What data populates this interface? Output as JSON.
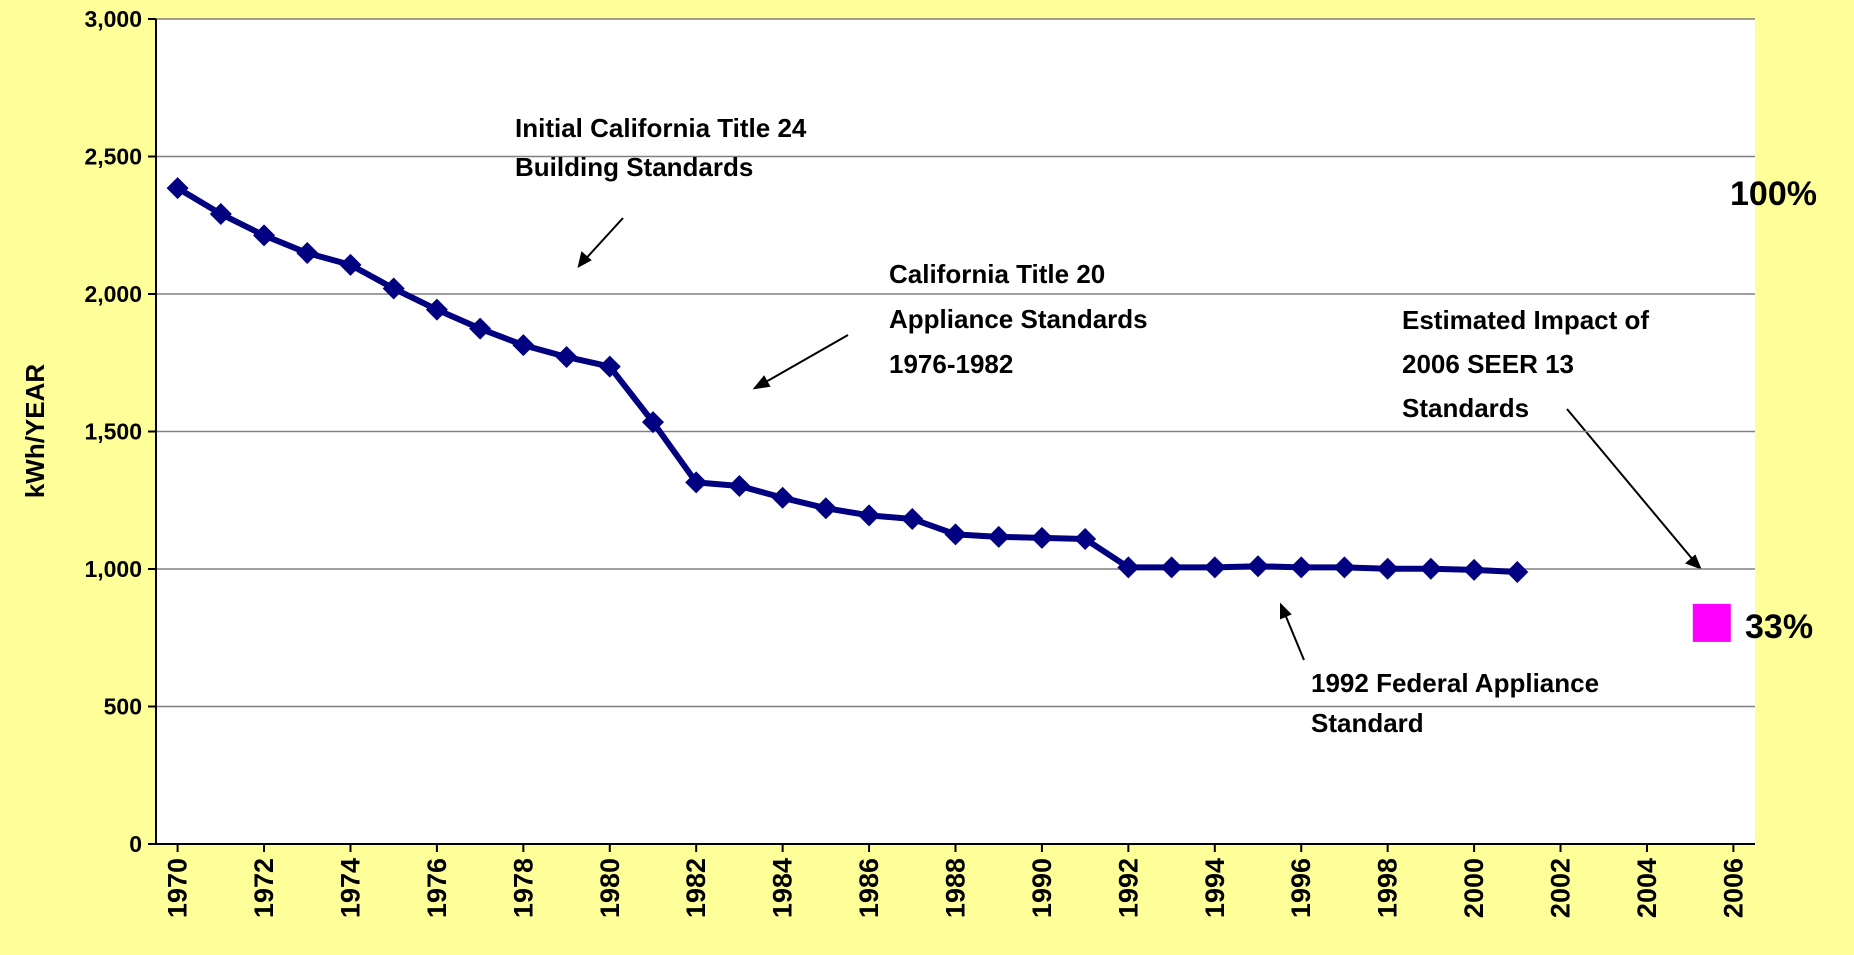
{
  "chart_data": {
    "type": "line",
    "y_label": "kWh/YEAR",
    "series": [
      {
        "color": "#000080",
        "marker": "diamond",
        "x": [
          1970,
          1971,
          1972,
          1973,
          1974,
          1975,
          1976,
          1977,
          1978,
          1979,
          1980,
          1981,
          1982,
          1983,
          1984,
          1985,
          1986,
          1987,
          1988,
          1989,
          1990,
          1991,
          1992,
          1993,
          1994,
          1995,
          1996,
          1997,
          1998,
          1999,
          2000,
          2001
        ],
        "values": [
          2385,
          2291,
          2213,
          2149,
          2106,
          2020,
          1943,
          1874,
          1814,
          1771,
          1736,
          1534,
          1315,
          1302,
          1259,
          1221,
          1195,
          1182,
          1126,
          1117,
          1113,
          1109,
          1006,
          1006,
          1006,
          1010,
          1006,
          1006,
          1001,
          1001,
          997,
          989
        ]
      },
      {
        "color": "#ff00ff",
        "marker": "square",
        "x": [
          2005.5
        ],
        "values": [
          804
        ]
      }
    ],
    "xlim": [
      1969.5,
      2006.5
    ],
    "xticks": [
      1970,
      1972,
      1974,
      1976,
      1978,
      1980,
      1982,
      1984,
      1986,
      1988,
      1990,
      1992,
      1994,
      1996,
      1998,
      2000,
      2002,
      2004,
      2006
    ],
    "ylim": [
      0,
      3000
    ],
    "yticks": [
      0,
      500,
      {
        "value": 1000,
        "label": "1,000"
      },
      {
        "value": 1500,
        "label": "1,500"
      },
      {
        "value": 2000,
        "label": "2,000"
      },
      {
        "value": 2500,
        "label": "2,500"
      },
      {
        "value": 3000,
        "label": "3,000"
      }
    ],
    "grid": true,
    "annotations": [
      {
        "lines": [
          "Initial California Title 24",
          "Building Standards"
        ]
      },
      {
        "lines": [
          "California Title 20",
          "Appliance Standards",
          "1976-1982"
        ]
      },
      {
        "lines": [
          "Estimated Impact of",
          "2006 SEER 13",
          "Standards"
        ]
      },
      {
        "lines": [
          "1992 Federal Appliance",
          "Standard"
        ]
      },
      {
        "lines": [
          "100%"
        ]
      },
      {
        "lines": [
          "33%"
        ]
      }
    ]
  }
}
